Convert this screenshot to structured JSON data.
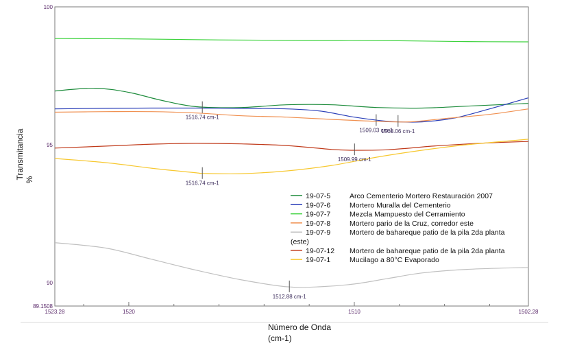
{
  "chart_data": {
    "type": "line",
    "xlabel_line1": "Número de Onda",
    "xlabel_line2": "(cm-1)",
    "ylabel_line1": "Transmitancia",
    "ylabel_line2": "%",
    "xlim": [
      1523.28,
      1502.28
    ],
    "ylim": [
      89.1508,
      100
    ],
    "x_ticks": [
      {
        "value": 1523.28,
        "label": "1523.28"
      },
      {
        "value": 1520,
        "label": "1520"
      },
      {
        "value": 1510,
        "label": "1510"
      },
      {
        "value": 1502.28,
        "label": "1502.28"
      }
    ],
    "y_ticks": [
      {
        "value": 100,
        "label": "100"
      },
      {
        "value": 95,
        "label": "95"
      },
      {
        "value": 90,
        "label": "90"
      },
      {
        "value": 89.1508,
        "label": "89.1508"
      }
    ],
    "series": [
      {
        "code": "19-07-5",
        "name": "Arco Cementerio Mortero Restauración 2007",
        "color": "#1e8c3c",
        "points": [
          [
            1523.28,
            96.95
          ],
          [
            1521.5,
            97.05
          ],
          [
            1520,
            96.9
          ],
          [
            1518.5,
            96.6
          ],
          [
            1517,
            96.38
          ],
          [
            1515,
            96.35
          ],
          [
            1513,
            96.45
          ],
          [
            1511,
            96.45
          ],
          [
            1509,
            96.35
          ],
          [
            1507,
            96.33
          ],
          [
            1505,
            96.4
          ],
          [
            1502.28,
            96.5
          ]
        ]
      },
      {
        "code": "19-07-6",
        "name": "Mortero Muralla del Cementerio",
        "color": "#2b3fb8",
        "points": [
          [
            1523.28,
            96.3
          ],
          [
            1521,
            96.32
          ],
          [
            1519,
            96.33
          ],
          [
            1517,
            96.33
          ],
          [
            1515,
            96.32
          ],
          [
            1513,
            96.3
          ],
          [
            1511.5,
            96.22
          ],
          [
            1510,
            96.0
          ],
          [
            1508.5,
            95.85
          ],
          [
            1507,
            95.83
          ],
          [
            1505.5,
            95.98
          ],
          [
            1504,
            96.3
          ],
          [
            1502.28,
            96.7
          ]
        ]
      },
      {
        "code": "19-07-7",
        "name": "Mezcla Mampuesto del Cerramiento",
        "color": "#3cd23c",
        "points": [
          [
            1523.28,
            98.85
          ],
          [
            1520,
            98.84
          ],
          [
            1516,
            98.8
          ],
          [
            1512,
            98.78
          ],
          [
            1508,
            98.77
          ],
          [
            1505,
            98.74
          ],
          [
            1502.28,
            98.73
          ]
        ]
      },
      {
        "code": "19-07-8",
        "name": "Mortero pario de la Cruz,  corredor este",
        "color": "#f09050",
        "points": [
          [
            1523.28,
            96.18
          ],
          [
            1521,
            96.2
          ],
          [
            1519,
            96.2
          ],
          [
            1517,
            96.15
          ],
          [
            1515,
            96.05
          ],
          [
            1513,
            96.0
          ],
          [
            1511,
            95.92
          ],
          [
            1509,
            95.85
          ],
          [
            1507.5,
            95.83
          ],
          [
            1506,
            95.95
          ],
          [
            1504,
            96.1
          ],
          [
            1502.28,
            96.3
          ]
        ]
      },
      {
        "code": "19-07-9",
        "name": "Mortero de bahareque patio de la pila 2da planta",
        "name_cont": "(este)",
        "color": "#c0c0c0",
        "points": [
          [
            1523.28,
            91.45
          ],
          [
            1521,
            91.25
          ],
          [
            1519,
            90.85
          ],
          [
            1517,
            90.45
          ],
          [
            1515,
            90.1
          ],
          [
            1513,
            89.85
          ],
          [
            1511.5,
            89.85
          ],
          [
            1510,
            89.95
          ],
          [
            1508.5,
            90.15
          ],
          [
            1507,
            90.35
          ],
          [
            1505,
            90.48
          ],
          [
            1502.28,
            90.55
          ]
        ]
      },
      {
        "code": "19-07-12",
        "name": "Mortero de bahareque patio de la pila 2da planta",
        "color": "#c03a1a",
        "points": [
          [
            1523.28,
            94.88
          ],
          [
            1521,
            94.95
          ],
          [
            1519,
            95.02
          ],
          [
            1517,
            95.05
          ],
          [
            1515,
            95.03
          ],
          [
            1513,
            94.97
          ],
          [
            1511,
            94.83
          ],
          [
            1509.99,
            94.8
          ],
          [
            1508.5,
            94.82
          ],
          [
            1506.5,
            94.95
          ],
          [
            1504.5,
            95.05
          ],
          [
            1502.28,
            95.12
          ]
        ]
      },
      {
        "code": "19-07-1",
        "name": "Mucilago  a 80°C  Evaporado",
        "color": "#f7c830",
        "points": [
          [
            1523.28,
            94.5
          ],
          [
            1521,
            94.35
          ],
          [
            1519,
            94.15
          ],
          [
            1517,
            93.98
          ],
          [
            1516.74,
            93.96
          ],
          [
            1515,
            93.95
          ],
          [
            1513,
            94.05
          ],
          [
            1511,
            94.25
          ],
          [
            1509,
            94.55
          ],
          [
            1507,
            94.8
          ],
          [
            1505,
            95.0
          ],
          [
            1502.28,
            95.2
          ]
        ]
      }
    ],
    "peak_labels": [
      {
        "x": 1516.74,
        "y": 96.35,
        "text": "1516.74 cm-1"
      },
      {
        "x": 1509.03,
        "y": 95.88,
        "text": "1509.03 cm-1"
      },
      {
        "x": 1508.06,
        "y": 95.85,
        "text": "1508.06 cm-1"
      },
      {
        "x": 1509.99,
        "y": 94.82,
        "text": "1509.99 cm-1"
      },
      {
        "x": 1516.74,
        "y": 93.96,
        "text": "1516.74 cm-1"
      },
      {
        "x": 1512.88,
        "y": 89.85,
        "text": "1512.88 cm-1"
      }
    ],
    "legend_position": "bottom-right"
  }
}
